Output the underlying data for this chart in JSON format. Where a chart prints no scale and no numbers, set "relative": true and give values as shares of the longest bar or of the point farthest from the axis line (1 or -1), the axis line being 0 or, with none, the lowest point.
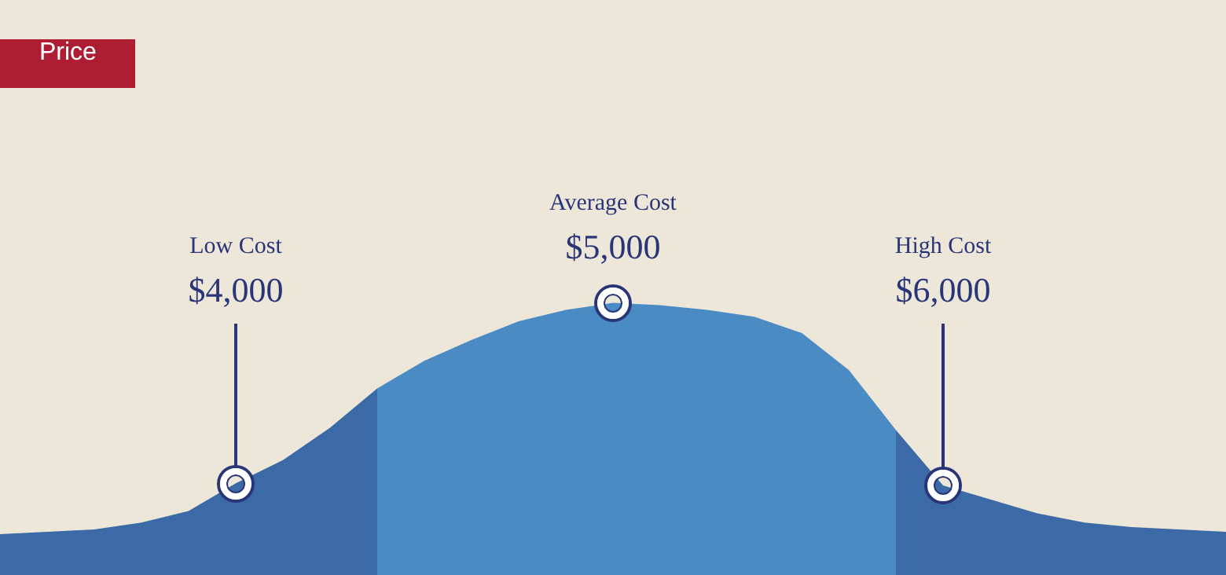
{
  "chart_data": {
    "type": "area",
    "title": "Price",
    "relative": true,
    "legend": false,
    "categories": [
      null,
      null,
      null,
      null,
      null,
      null,
      null,
      null,
      null,
      null,
      null,
      null,
      null,
      null,
      null,
      null,
      null,
      null,
      null,
      null,
      null,
      null,
      null,
      null,
      null,
      null,
      null
    ],
    "series": [
      {
        "color": "#3b6aa6",
        "values": [
          0,
          0.01,
          0.02,
          0.05,
          0.1,
          0.22,
          0.32,
          0.46,
          0.63,
          null,
          null,
          null,
          null,
          null,
          null,
          null,
          null,
          null,
          null,
          null,
          null,
          null,
          null,
          null,
          null,
          null,
          null
        ]
      },
      {
        "color": "#4a8bc4",
        "values": [
          null,
          null,
          null,
          null,
          null,
          null,
          null,
          null,
          0.63,
          0.75,
          0.84,
          0.92,
          0.97,
          1,
          0.99,
          0.97,
          0.94,
          0.87,
          0.71,
          0.45,
          null,
          null,
          null,
          null,
          null,
          null,
          null
        ]
      },
      {
        "color": "#3b6aa6",
        "values": [
          null,
          null,
          null,
          null,
          null,
          null,
          null,
          null,
          null,
          null,
          null,
          null,
          null,
          null,
          null,
          null,
          null,
          null,
          null,
          0.45,
          0.21,
          0.15,
          0.09,
          0.05,
          0.03,
          0.02,
          0.01
        ]
      }
    ],
    "annotations": [
      "Low Cost",
      "$4,000",
      "Average Cost",
      "$5,000",
      "High Cost",
      "$6,000"
    ]
  }
}
